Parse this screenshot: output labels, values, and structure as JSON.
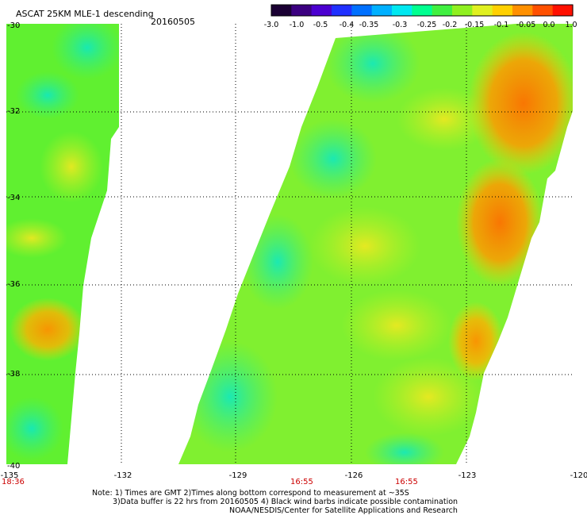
{
  "header": {
    "title": "ASCAT 25KM MLE-1 descending",
    "date": "20160505"
  },
  "colorbar": {
    "labels": [
      "-3.0",
      "-1.0",
      "-0.5",
      "-0.4",
      "-0.35",
      "-0.3",
      "-0.25",
      "-0.2",
      "-0.15",
      "-0.1",
      "-0.05",
      "0.0",
      "1.0"
    ],
    "colors": [
      "#1a0033",
      "#3b0080",
      "#4b00d0",
      "#2030ff",
      "#0070ff",
      "#00b0ff",
      "#00e8f0",
      "#00ff90",
      "#40f040",
      "#90f020",
      "#e0f020",
      "#ffd000",
      "#ff9000",
      "#ff5000",
      "#ff1000"
    ]
  },
  "axes": {
    "lat_labels": [
      "-30",
      "-32",
      "-34",
      "-36",
      "-38",
      "-40"
    ],
    "lon_labels": [
      "-135",
      "-132",
      "-129",
      "-126",
      "-123",
      "-120"
    ]
  },
  "times": {
    "left": "18:36",
    "mid1": "16:55",
    "mid2": "16:55"
  },
  "notes": {
    "line1": "Note: 1) Times are GMT 2)Times along bottom correspond to measurement at ~35S",
    "line2": "3)Data buffer is 22 hrs from 20160505 4) Black wind barbs indicate possible contamination",
    "line3": "NOAA/NESDIS/Center for Satellite Applications and Research"
  },
  "palette": {
    "map_low": "#10e8c0",
    "map_mid": "#40f040",
    "map_high": "#ffd000",
    "map_peak": "#ff7000",
    "time_color": "#cc0000"
  }
}
